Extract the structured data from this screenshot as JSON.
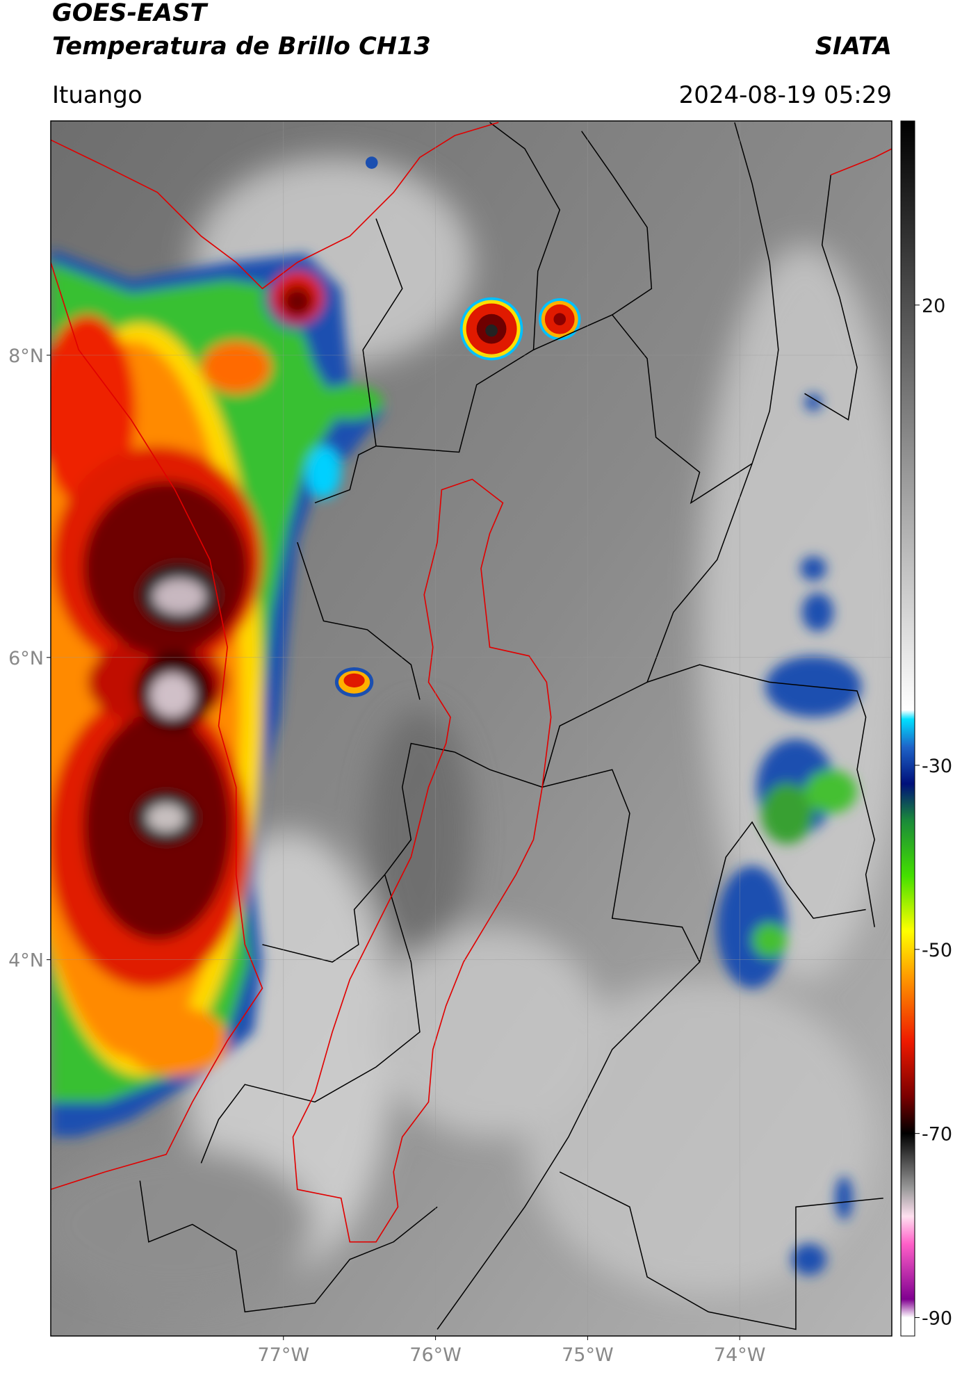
{
  "header": {
    "title": "GOES-EAST",
    "subtitle": "Temperatura de Brillo CH13",
    "source": "SIATA",
    "location": "Ituango",
    "datetime": "2024-08-19 05:29"
  },
  "chart_data": {
    "type": "map",
    "xlim": [
      -78.53,
      -73.0
    ],
    "ylim": [
      1.51,
      9.55
    ],
    "xticks": [
      {
        "value": -77,
        "label": "77°W"
      },
      {
        "value": -76,
        "label": "76°W"
      },
      {
        "value": -75,
        "label": "75°W"
      },
      {
        "value": -74,
        "label": "74°W"
      }
    ],
    "yticks": [
      {
        "value": 4,
        "label": "4°N"
      },
      {
        "value": 6,
        "label": "6°N"
      },
      {
        "value": 8,
        "label": "8°N"
      }
    ],
    "grid": true,
    "colorbar": {
      "clim": [
        -92,
        40
      ],
      "ticks": [
        -90,
        -70,
        -50,
        -30,
        20
      ],
      "colormap": [
        {
          "value": 40,
          "color": "#000000"
        },
        {
          "value": -24,
          "color": "#ffffff"
        },
        {
          "value": -25,
          "color": "#00e0ff"
        },
        {
          "value": -28,
          "color": "#1e64c8"
        },
        {
          "value": -32,
          "color": "#00107a"
        },
        {
          "value": -36,
          "color": "#1a8a3a"
        },
        {
          "value": -42,
          "color": "#44e000"
        },
        {
          "value": -48,
          "color": "#ffff00"
        },
        {
          "value": -53,
          "color": "#ff9a00"
        },
        {
          "value": -60,
          "color": "#ee1a00"
        },
        {
          "value": -66,
          "color": "#7a0000"
        },
        {
          "value": -70,
          "color": "#000000"
        },
        {
          "value": -76,
          "color": "#9a9a9a"
        },
        {
          "value": -79,
          "color": "#ffe0f0"
        },
        {
          "value": -82,
          "color": "#ff60c8"
        },
        {
          "value": -88,
          "color": "#800090"
        },
        {
          "value": -90,
          "color": "#ffffff"
        }
      ]
    }
  }
}
